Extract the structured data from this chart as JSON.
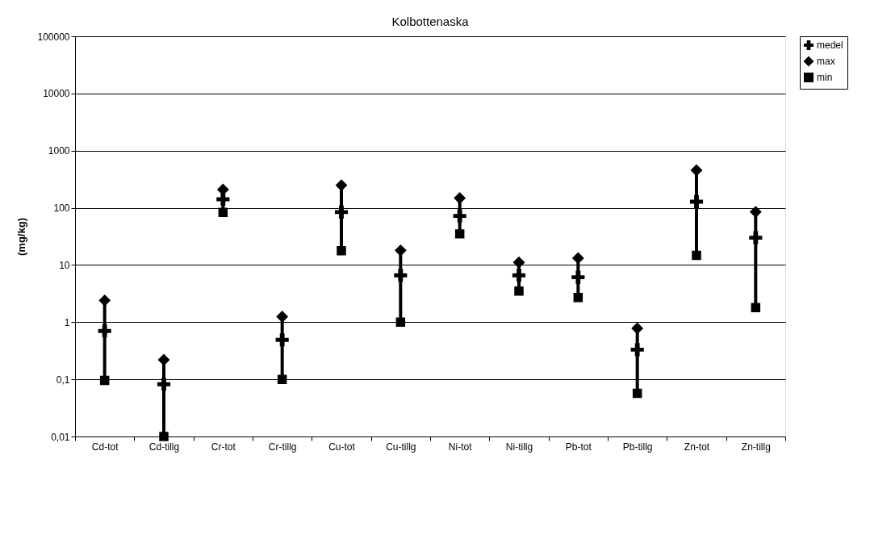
{
  "chart_data": {
    "type": "scatter",
    "title": "Kolbottenaska",
    "ylabel": "(mg/kg)",
    "categories": [
      "Cd-tot",
      "Cd-tillg",
      "Cr-tot",
      "Cr-tillg",
      "Cu-tot",
      "Cu-tillg",
      "Ni-tot",
      "Ni-tillg",
      "Pb-tot",
      "Pb-tillg",
      "Zn-tot",
      "Zn-tillg"
    ],
    "series": [
      {
        "name": "medel",
        "color": "#000000",
        "marker": "cross",
        "values": [
          0.7,
          0.082,
          141,
          0.49,
          84,
          6.6,
          72,
          6.6,
          6.1,
          0.33,
          128,
          30
        ]
      },
      {
        "name": "max",
        "color": "#000000",
        "marker": "diamond",
        "values": [
          2.4,
          0.22,
          209,
          1.25,
          248,
          18,
          148,
          11.1,
          13.2,
          0.78,
          454,
          85
        ]
      },
      {
        "name": "min",
        "color": "#000000",
        "marker": "square",
        "values": [
          0.096,
          0.01,
          83,
          0.1,
          17.8,
          1.0,
          35,
          3.5,
          2.7,
          0.057,
          14.7,
          1.8
        ]
      }
    ],
    "log": true,
    "ylim": [
      0.01,
      100000
    ],
    "yticks": [
      {
        "value": 0.01,
        "label": "0,01"
      },
      {
        "value": 0.1,
        "label": "0,1"
      },
      1,
      10,
      100,
      1000,
      10000,
      100000
    ],
    "grid": "y",
    "legend": "right"
  }
}
